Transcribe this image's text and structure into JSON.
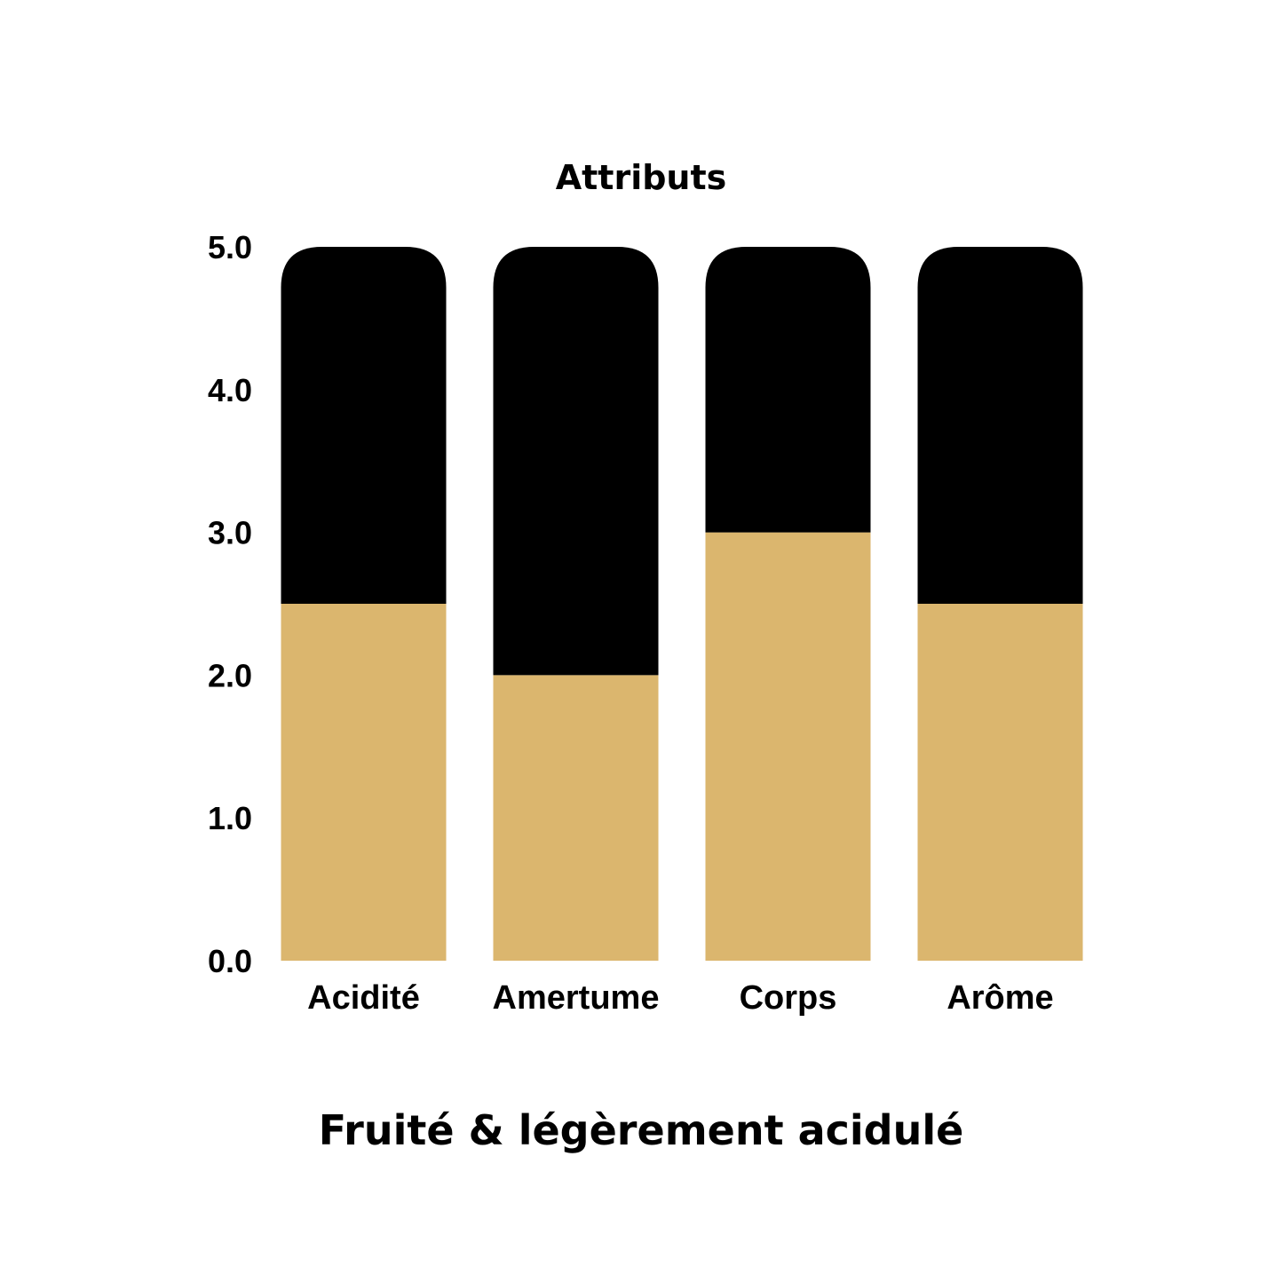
{
  "chart_data": {
    "type": "bar",
    "title": "Attributs",
    "subtitle": "Fruité & légèrement acidulé",
    "categories": [
      "Acidité",
      "Amertume",
      "Corps",
      "Arôme"
    ],
    "series": [
      {
        "values": [
          2.5,
          2.0,
          3.0,
          2.5
        ],
        "color": "#dbb66e"
      },
      {
        "values": [
          2.5,
          3.0,
          2.0,
          2.5
        ],
        "color": "#000000"
      }
    ],
    "stacked": true,
    "ylim": [
      0,
      5
    ],
    "yticks": [
      "0.0",
      "1.0",
      "2.0",
      "3.0",
      "4.0",
      "5.0"
    ],
    "xlabel": "",
    "ylabel": "",
    "grid": false,
    "colors": {
      "filled": "#dbb66e",
      "remaining": "#000000",
      "background": "#ffffff",
      "text": "#000000"
    }
  }
}
